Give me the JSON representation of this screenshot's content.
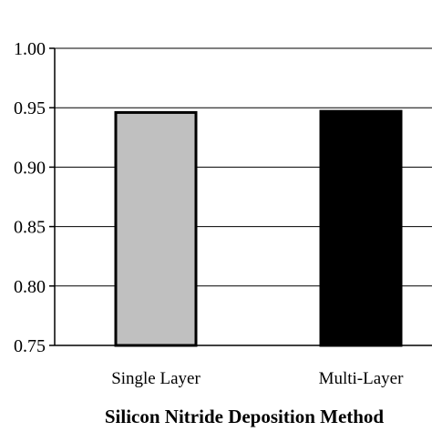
{
  "chart_data": {
    "type": "bar",
    "categories": [
      "Single Layer",
      "Multi-Layer"
    ],
    "values": [
      0.946,
      0.947
    ],
    "bar_colors": [
      "#c0c0c0",
      "#000000"
    ],
    "bar_outline": "#000000",
    "title": "",
    "xlabel": "Silicon Nitride Deposition Method",
    "ylabel": "",
    "ylim": [
      0.75,
      1.0
    ],
    "yticks": [
      0.75,
      0.8,
      0.85,
      0.9,
      0.95,
      1.0
    ],
    "ytick_labels": [
      "0.75",
      "0.80",
      "0.85",
      "0.90",
      "0.95",
      "1.00"
    ],
    "grid": true,
    "legend": "none"
  }
}
